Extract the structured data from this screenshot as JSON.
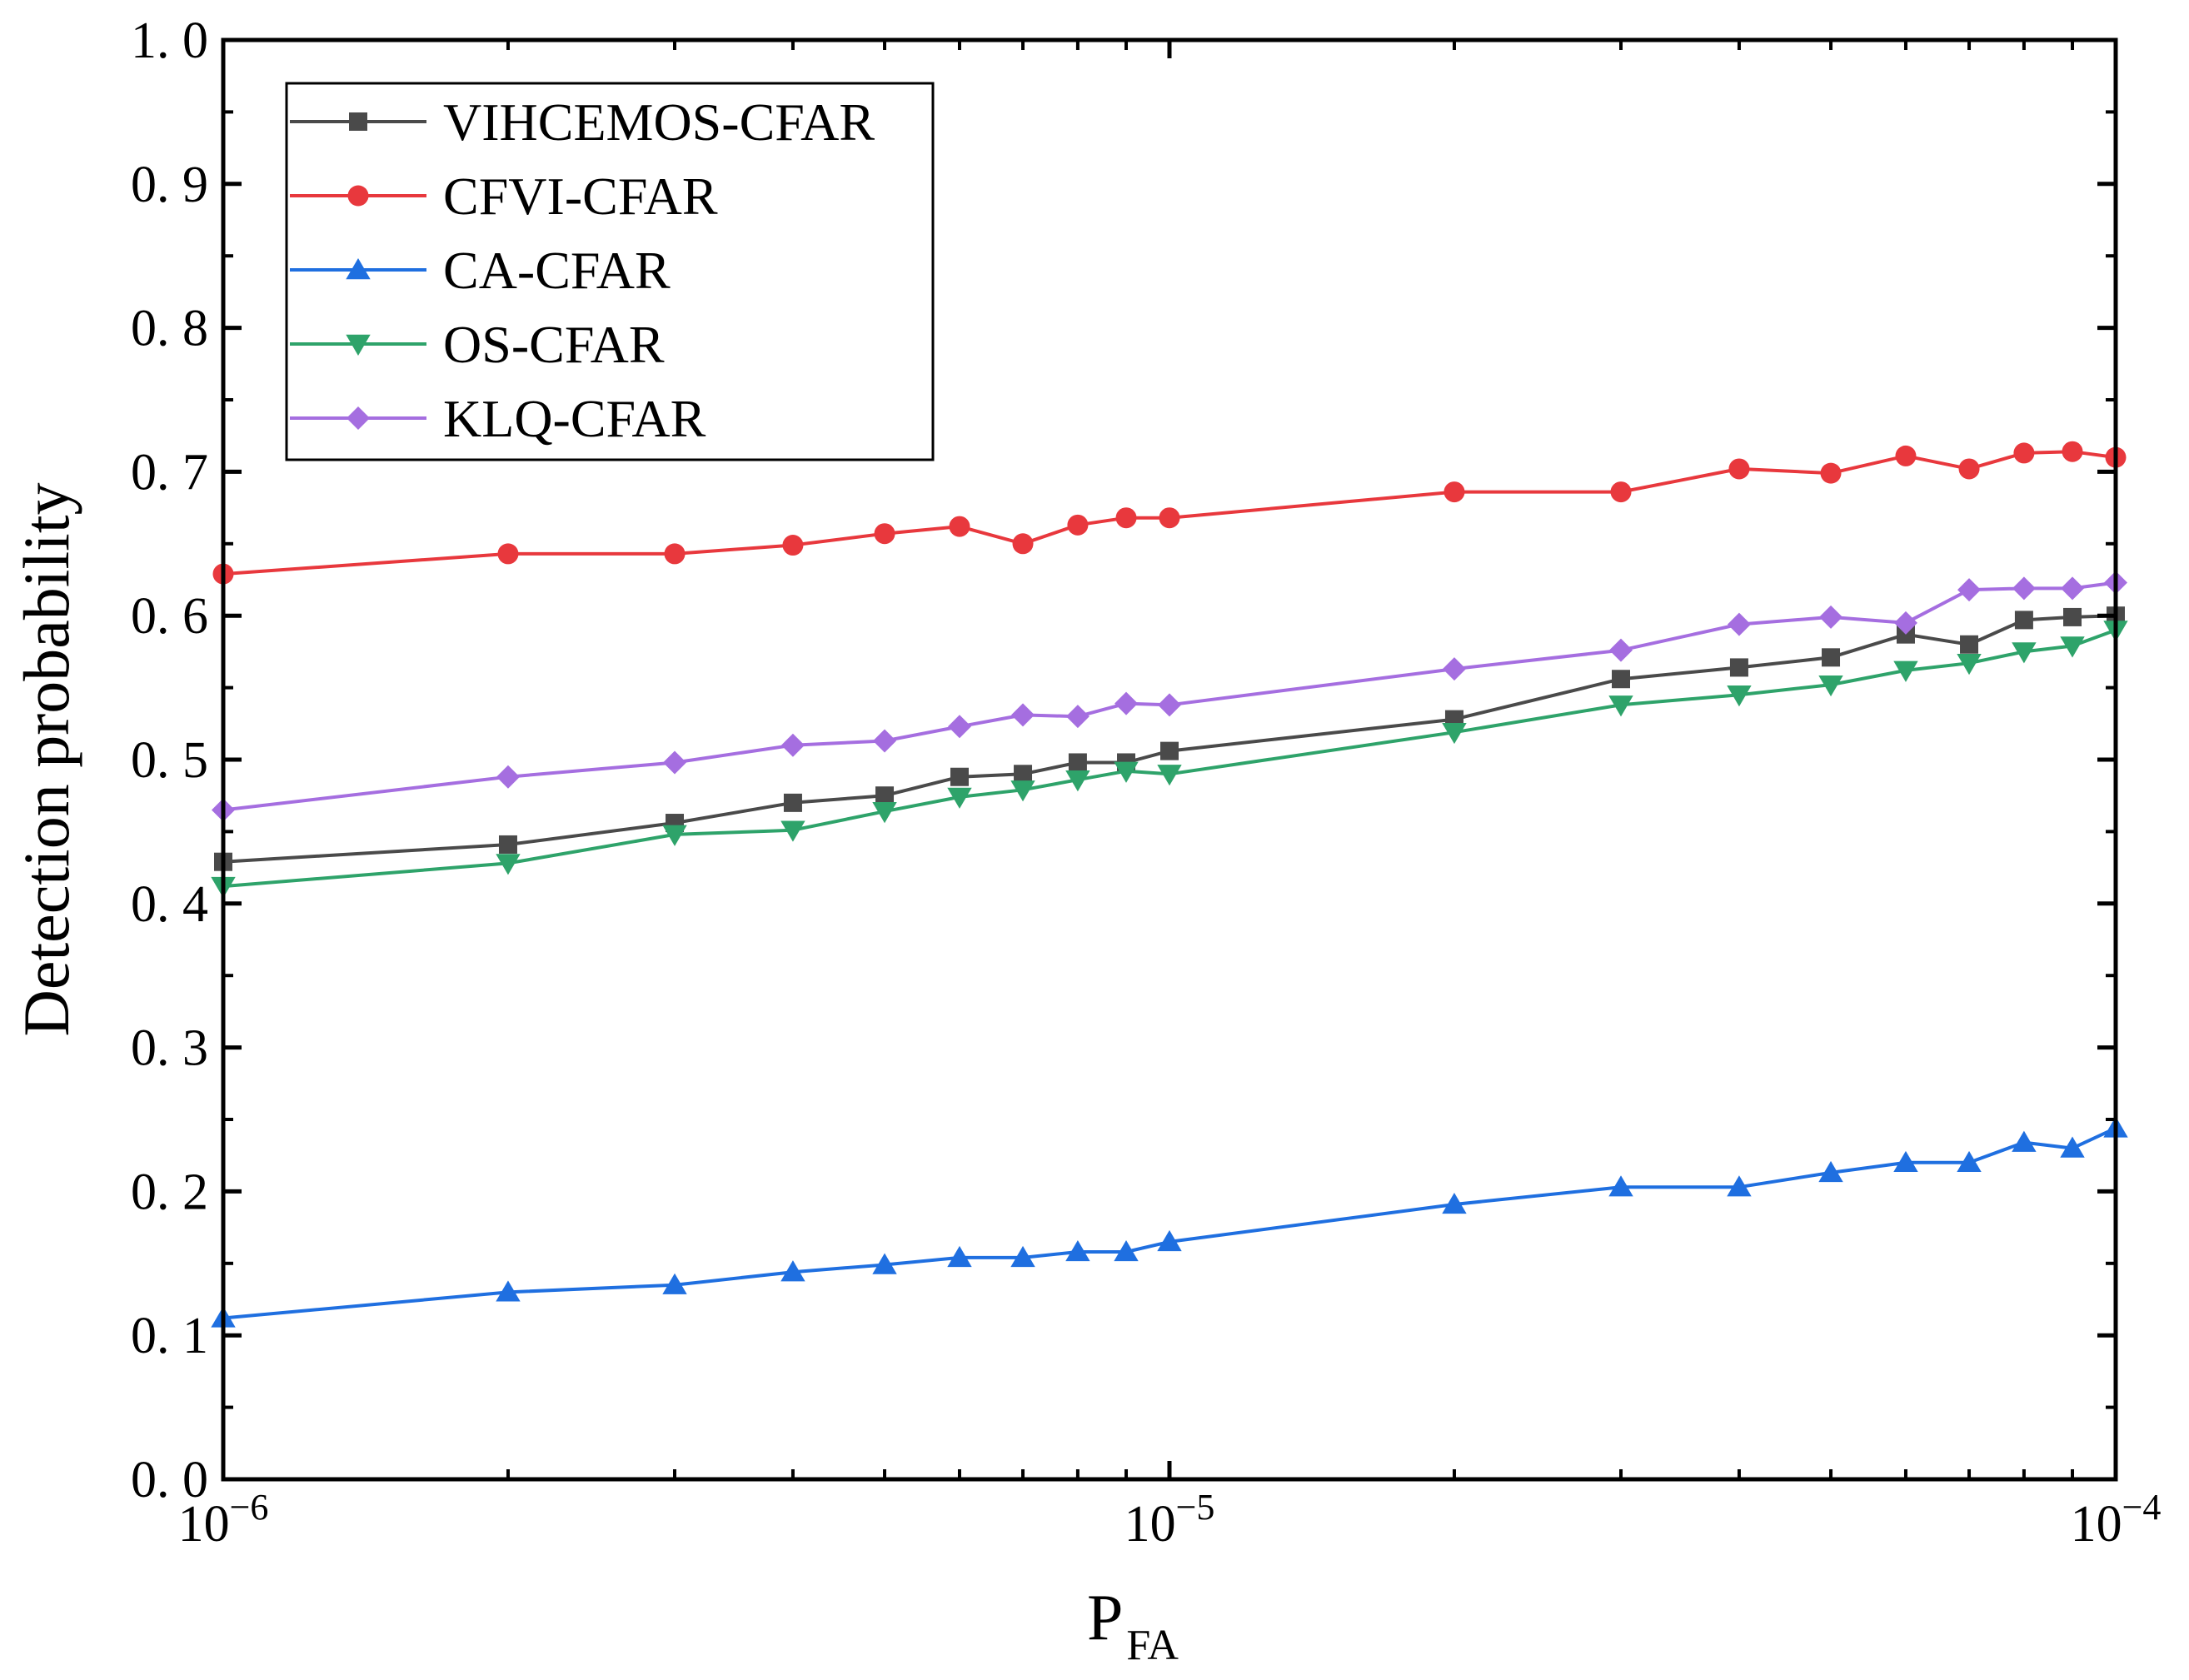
{
  "chart_data": {
    "type": "line",
    "title": "",
    "xlabel": {
      "main": "P",
      "sub": "FA"
    },
    "ylabel": "Detection probability",
    "xscale": "log",
    "xlim": [
      1e-06,
      0.0001
    ],
    "ylim": [
      0.0,
      1.0
    ],
    "x_ticks": [
      {
        "value": 1e-06,
        "base": "10",
        "exp": "−6"
      },
      {
        "value": 1e-05,
        "base": "10",
        "exp": "−5"
      },
      {
        "value": 0.0001,
        "base": "10",
        "exp": "−4"
      }
    ],
    "y_ticks": [
      {
        "value": 0.0,
        "label": "0. 0"
      },
      {
        "value": 0.1,
        "label": "0. 1"
      },
      {
        "value": 0.2,
        "label": "0. 2"
      },
      {
        "value": 0.3,
        "label": "0. 3"
      },
      {
        "value": 0.4,
        "label": "0. 4"
      },
      {
        "value": 0.5,
        "label": "0. 5"
      },
      {
        "value": 0.6,
        "label": "0. 6"
      },
      {
        "value": 0.7,
        "label": "0. 7"
      },
      {
        "value": 0.8,
        "label": "0. 8"
      },
      {
        "value": 0.9,
        "label": "0. 9"
      },
      {
        "value": 1.0,
        "label": "1. 0"
      }
    ],
    "x": [
      1e-06,
      2e-06,
      3e-06,
      4e-06,
      5e-06,
      6e-06,
      7e-06,
      8e-06,
      9e-06,
      1e-05,
      2e-05,
      3e-05,
      4e-05,
      5e-05,
      6e-05,
      7e-05,
      8e-05,
      9e-05,
      0.0001
    ],
    "legend_position": "top-left",
    "series": [
      {
        "name": "VIHCEMOS-CFAR",
        "color": "#4a4a4a",
        "marker": "square",
        "values": [
          0.429,
          0.441,
          0.456,
          0.47,
          0.475,
          0.488,
          0.49,
          0.498,
          0.498,
          0.506,
          0.528,
          0.556,
          0.564,
          0.571,
          0.587,
          0.58,
          0.597,
          0.599,
          0.6
        ]
      },
      {
        "name": "CFVI-CFAR",
        "color": "#e8383d",
        "marker": "circle",
        "values": [
          0.629,
          0.643,
          0.643,
          0.649,
          0.657,
          0.662,
          0.65,
          0.663,
          0.668,
          0.668,
          0.686,
          0.686,
          0.702,
          0.699,
          0.711,
          0.702,
          0.713,
          0.714,
          0.71
        ]
      },
      {
        "name": "CA-CFAR",
        "color": "#1f6fe0",
        "marker": "triangle-up",
        "values": [
          0.112,
          0.13,
          0.135,
          0.144,
          0.149,
          0.154,
          0.154,
          0.158,
          0.158,
          0.165,
          0.191,
          0.203,
          0.203,
          0.213,
          0.22,
          0.22,
          0.234,
          0.23,
          0.244
        ]
      },
      {
        "name": "OS-CFAR",
        "color": "#2ea36a",
        "marker": "triangle-down",
        "values": [
          0.412,
          0.428,
          0.448,
          0.451,
          0.464,
          0.474,
          0.479,
          0.486,
          0.492,
          0.49,
          0.519,
          0.538,
          0.545,
          0.552,
          0.562,
          0.567,
          0.575,
          0.579,
          0.59
        ]
      },
      {
        "name": "KLQ-CFAR",
        "color": "#a56ee0",
        "marker": "diamond",
        "values": [
          0.465,
          0.488,
          0.498,
          0.51,
          0.513,
          0.523,
          0.531,
          0.53,
          0.539,
          0.538,
          0.563,
          0.576,
          0.594,
          0.599,
          0.595,
          0.618,
          0.619,
          0.619,
          0.623
        ]
      }
    ]
  }
}
